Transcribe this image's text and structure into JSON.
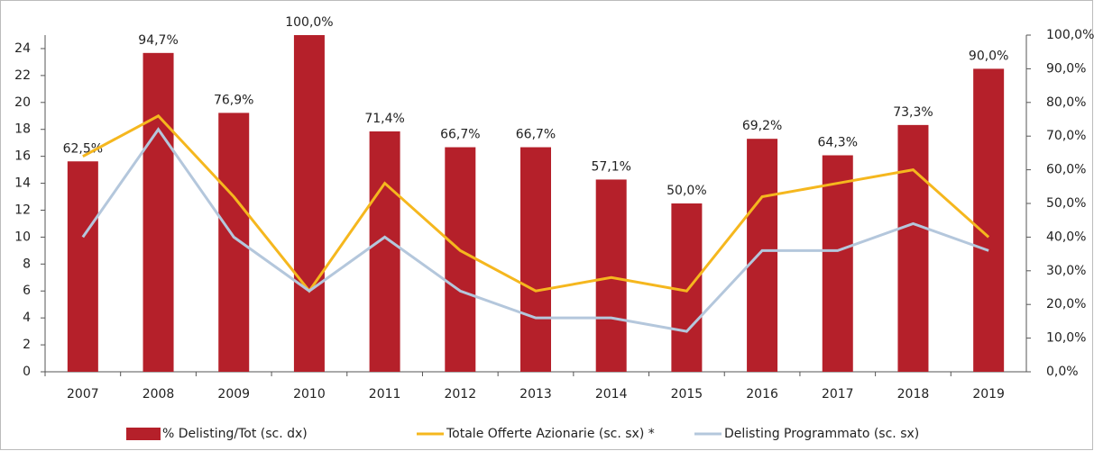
{
  "chart_data": {
    "type": "bar-line",
    "categories": [
      "2007",
      "2008",
      "2009",
      "2010",
      "2011",
      "2012",
      "2013",
      "2014",
      "2015",
      "2016",
      "2017",
      "2018",
      "2019"
    ],
    "series": [
      {
        "name": "% Delisting/Tot (sc. dx)",
        "type": "bar",
        "axis": "y2",
        "color": "#b5202a",
        "values": [
          62.5,
          94.7,
          76.9,
          100,
          71.4,
          66.7,
          66.7,
          57.1,
          50,
          69.2,
          64.3,
          73.3,
          90
        ],
        "value_labels": [
          "62,5%",
          "94,7%",
          "76,9%",
          "100,0%",
          "71,4%",
          "66,7%",
          "66,7%",
          "57,1%",
          "50,0%",
          "69,2%",
          "64,3%",
          "73,3%",
          "90,0%"
        ]
      },
      {
        "name": "Totale Offerte Azionarie (sc. sx) *",
        "type": "line",
        "color": "#f5b71e",
        "values": [
          16,
          19,
          13,
          6,
          14,
          9,
          6,
          7,
          6,
          13,
          14,
          15,
          10
        ]
      },
      {
        "name": "Delisting Programmato (sc. sx)",
        "type": "line",
        "color": "#b4c7dc",
        "values": [
          10,
          18,
          10,
          6,
          10,
          6,
          4,
          4,
          3,
          9,
          9,
          11,
          9
        ]
      }
    ],
    "ylim": [
      0,
      25
    ],
    "yticks": [
      0,
      2,
      4,
      6,
      8,
      10,
      12,
      14,
      16,
      18,
      20,
      22,
      24
    ],
    "y2lim": [
      0,
      100
    ],
    "y2ticks": [
      {
        "value": 0,
        "label": "0,0%"
      },
      {
        "value": 10,
        "label": "10,0%"
      },
      {
        "value": 20,
        "label": "20,0%"
      },
      {
        "value": 30,
        "label": "30,0%"
      },
      {
        "value": 40,
        "label": "40,0%"
      },
      {
        "value": 50,
        "label": "50,0%"
      },
      {
        "value": 60,
        "label": "60,0%"
      },
      {
        "value": 70,
        "label": "70,0%"
      },
      {
        "value": 80,
        "label": "80,0%"
      },
      {
        "value": 90,
        "label": "90,0%"
      },
      {
        "value": 100,
        "label": "100,0%"
      }
    ],
    "legend": "bottom"
  }
}
